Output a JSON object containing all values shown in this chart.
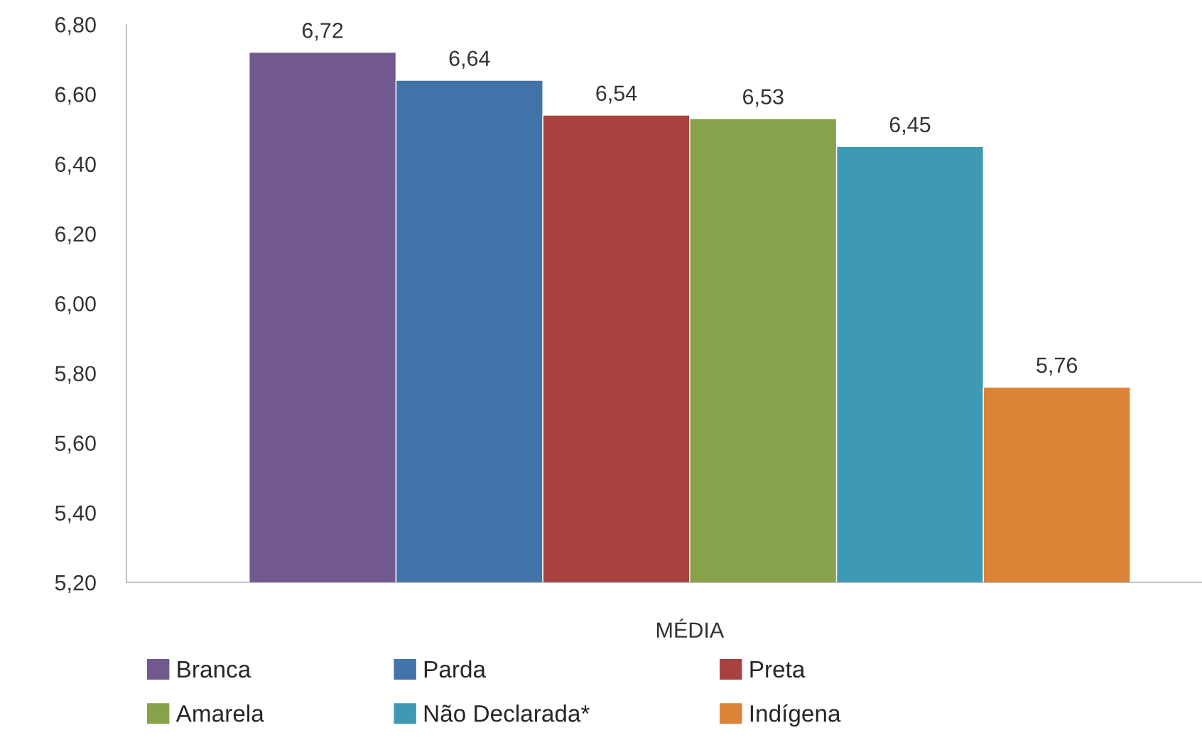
{
  "chart_data": {
    "type": "bar",
    "categories": [
      "MÉDIA"
    ],
    "series": [
      {
        "name": "Branca",
        "color": "#71588f",
        "values": [
          6.72
        ],
        "value_labels": [
          "6,72"
        ]
      },
      {
        "name": "Parda",
        "color": "#4273a8",
        "values": [
          6.64
        ],
        "value_labels": [
          "6,64"
        ]
      },
      {
        "name": "Preta",
        "color": "#a8423f",
        "values": [
          6.54
        ],
        "value_labels": [
          "6,54"
        ]
      },
      {
        "name": "Amarela",
        "color": "#87a24a",
        "values": [
          6.53
        ],
        "value_labels": [
          "6,53"
        ]
      },
      {
        "name": "Não Declarada*",
        "color": "#3e99b4",
        "values": [
          6.45
        ],
        "value_labels": [
          "6,45"
        ]
      },
      {
        "name": "Indígena",
        "color": "#db8438",
        "values": [
          5.76
        ],
        "value_labels": [
          "5,76"
        ]
      }
    ],
    "ylim": [
      5.2,
      6.8
    ],
    "yticks": [
      {
        "value": 5.2,
        "label": "5,20"
      },
      {
        "value": 5.4,
        "label": "5,40"
      },
      {
        "value": 5.6,
        "label": "5,60"
      },
      {
        "value": 5.8,
        "label": "5,80"
      },
      {
        "value": 6.0,
        "label": "6,00"
      },
      {
        "value": 6.2,
        "label": "6,20"
      },
      {
        "value": 6.4,
        "label": "6,40"
      },
      {
        "value": 6.6,
        "label": "6,60"
      },
      {
        "value": 6.8,
        "label": "6,80"
      }
    ],
    "grid": false,
    "legend": "bottom"
  }
}
